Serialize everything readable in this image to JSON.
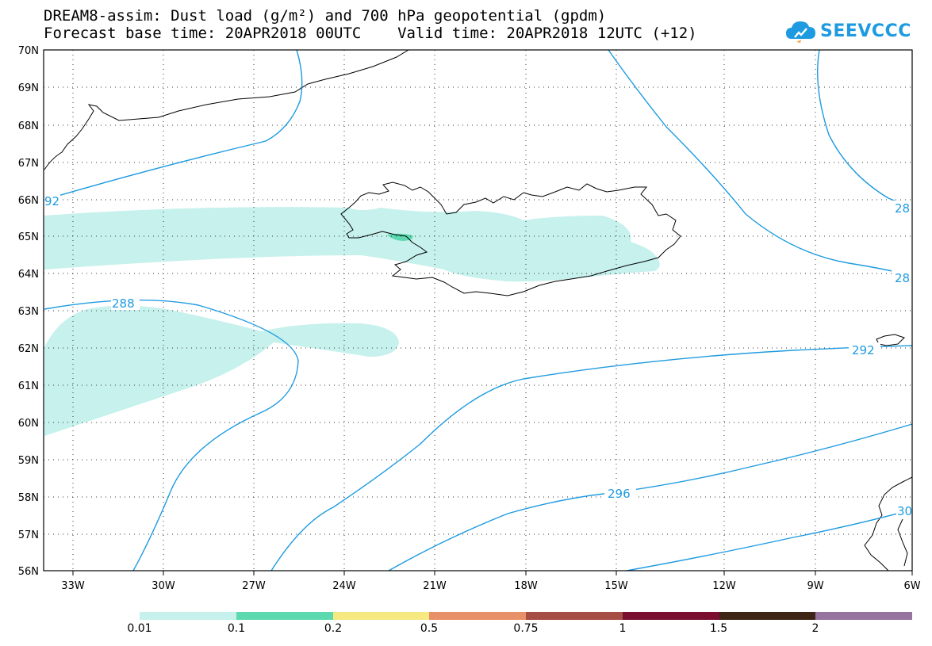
{
  "header": {
    "line1": "DREAM8-assim: Dust load (g/m²) and 700 hPa geopotential (gpdm)",
    "line2": "Forecast base time: 20APR2018 00UTC    Valid time: 20APR2018 12UTC (+12)"
  },
  "logo": {
    "text": "SEEVCCC",
    "icon": "cloud-logo-icon",
    "color": "#1e9be0"
  },
  "map": {
    "lat_labels": [
      "70N",
      "69N",
      "68N",
      "67N",
      "66N",
      "65N",
      "64N",
      "63N",
      "62N",
      "61N",
      "60N",
      "59N",
      "58N",
      "57N",
      "56N"
    ],
    "lon_labels": [
      "33W",
      "30W",
      "27W",
      "24W",
      "21W",
      "18W",
      "15W",
      "12W",
      "9W",
      "6W"
    ],
    "contour_color": "#1e9be0",
    "contour_labels": [
      "288",
      "292",
      "292",
      "296",
      "28",
      "28",
      "30",
      "92"
    ]
  },
  "colorbar": {
    "colors": [
      "#c6f1ec",
      "#5dd9b0",
      "#f7e982",
      "#e89068",
      "#a64e44",
      "#7a0f32",
      "#3d2616",
      "#9575a0"
    ],
    "labels": [
      "0.01",
      "0.1",
      "0.2",
      "0.5",
      "0.75",
      "1",
      "1.5",
      "2"
    ]
  }
}
